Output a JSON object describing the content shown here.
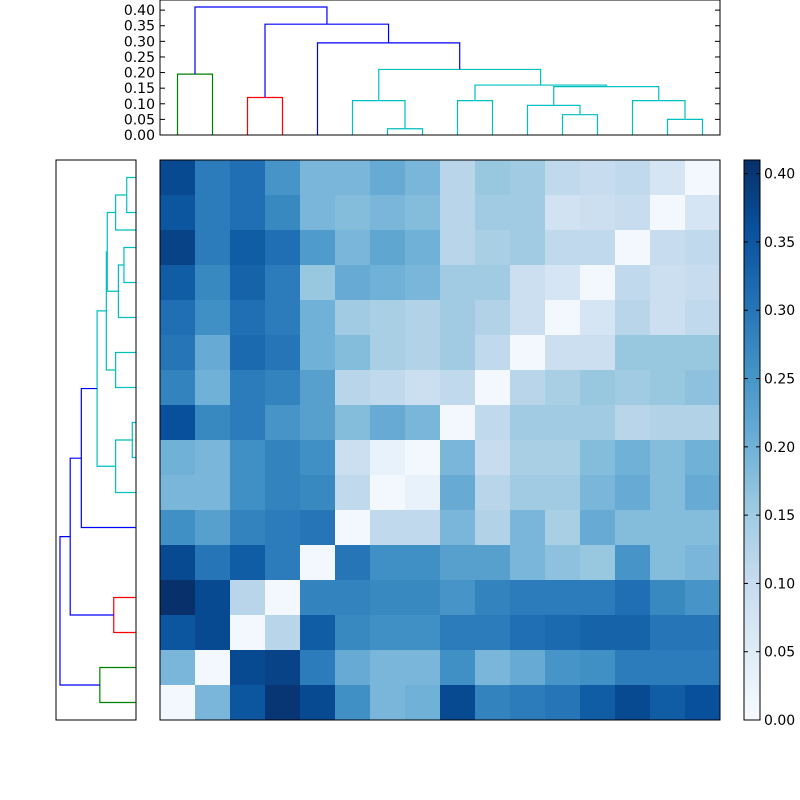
{
  "chart_data": [
    {
      "type": "dendrogram",
      "orientation": "top",
      "yticks": [
        "0.00",
        "0.05",
        "0.10",
        "0.15",
        "0.20",
        "0.25",
        "0.30",
        "0.35",
        "0.40"
      ],
      "ylim": [
        0,
        0.41
      ],
      "colors": {
        "green": "#008000",
        "red": "#ff0000",
        "blue": "#0000ff",
        "cyan": "#00bfbf"
      },
      "links": [
        {
          "x1": 0.5,
          "x2": 1.5,
          "y1a": 0.0,
          "y1b": 0.0,
          "h": 0.195,
          "color": "green"
        },
        {
          "x1": 2.5,
          "x2": 3.5,
          "y1a": 0.0,
          "y1b": 0.0,
          "h": 0.12,
          "color": "red"
        },
        {
          "x1": 6.5,
          "x2": 7.5,
          "y1a": 0.0,
          "y1b": 0.0,
          "h": 0.02,
          "color": "cyan"
        },
        {
          "x1": 5.5,
          "x2": 7.0,
          "y1a": 0.0,
          "y1b": 0.02,
          "h": 0.11,
          "color": "cyan"
        },
        {
          "x1": 8.5,
          "x2": 9.5,
          "y1a": 0.0,
          "y1b": 0.0,
          "h": 0.11,
          "color": "cyan"
        },
        {
          "x1": 11.5,
          "x2": 12.5,
          "y1a": 0.0,
          "y1b": 0.0,
          "h": 0.065,
          "color": "cyan"
        },
        {
          "x1": 10.5,
          "x2": 12.0,
          "y1a": 0.0,
          "y1b": 0.065,
          "h": 0.095,
          "color": "cyan"
        },
        {
          "x1": 14.5,
          "x2": 15.5,
          "y1a": 0.0,
          "y1b": 0.0,
          "h": 0.05,
          "color": "cyan"
        },
        {
          "x1": 13.5,
          "x2": 15.0,
          "y1a": 0.0,
          "y1b": 0.05,
          "h": 0.11,
          "color": "cyan"
        },
        {
          "x1": 11.25,
          "x2": 14.25,
          "y1a": 0.095,
          "y1b": 0.11,
          "h": 0.155,
          "color": "cyan"
        },
        {
          "x1": 9.0,
          "x2": 12.75,
          "y1a": 0.11,
          "y1b": 0.155,
          "h": 0.16,
          "color": "cyan"
        },
        {
          "x1": 6.25,
          "x2": 10.875,
          "y1a": 0.11,
          "y1b": 0.16,
          "h": 0.21,
          "color": "cyan"
        },
        {
          "x1": 4.5,
          "x2": 8.5625,
          "y1a": 0.0,
          "y1b": 0.21,
          "h": 0.295,
          "color": "blue"
        },
        {
          "x1": 3.0,
          "x2": 6.53,
          "y1a": 0.12,
          "y1b": 0.295,
          "h": 0.355,
          "color": "blue"
        },
        {
          "x1": 1.0,
          "x2": 4.77,
          "y1a": 0.195,
          "y1b": 0.355,
          "h": 0.41,
          "color": "blue"
        }
      ]
    },
    {
      "type": "dendrogram",
      "orientation": "left",
      "links_from_top": true,
      "note_ordering": "row order reversed relative to top dendrogram",
      "links": [
        {
          "y1": 14.5,
          "y2": 15.5,
          "h": 0.195,
          "color": "green"
        },
        {
          "y1": 12.5,
          "y2": 13.5,
          "h": 0.12,
          "color": "red"
        },
        {
          "y1": 8.5,
          "y2": 7.5,
          "h": 0.02,
          "color": "cyan"
        },
        {
          "y1": 9.5,
          "y2": 8.0,
          "h": 0.11,
          "color": "cyan"
        },
        {
          "y1": 6.5,
          "y2": 5.5,
          "h": 0.11,
          "color": "cyan"
        },
        {
          "y1": 3.5,
          "y2": 2.5,
          "h": 0.065,
          "color": "cyan"
        },
        {
          "y1": 4.5,
          "y2": 3.0,
          "h": 0.095,
          "color": "cyan"
        },
        {
          "y1": 0.5,
          "y2": 1.5,
          "h": 0.05,
          "color": "cyan"
        },
        {
          "y1": 2.0,
          "y2": 1.0,
          "h": 0.11,
          "color": "cyan"
        },
        {
          "y1": 3.75,
          "y2": 1.5,
          "h": 0.155,
          "color": "cyan"
        },
        {
          "y1": 6.0,
          "y2": 2.625,
          "h": 0.16,
          "color": "cyan"
        },
        {
          "y1": 8.75,
          "y2": 4.31,
          "h": 0.21,
          "color": "cyan"
        },
        {
          "y1": 10.5,
          "y2": 6.53,
          "h": 0.295,
          "color": "blue"
        },
        {
          "y1": 13.0,
          "y2": 8.52,
          "h": 0.355,
          "color": "blue"
        },
        {
          "y1": 15.0,
          "y2": 10.76,
          "h": 0.41,
          "color": "blue"
        }
      ]
    },
    {
      "type": "heatmap",
      "rows": 16,
      "cols": 16,
      "vmin": 0.0,
      "vmax": 0.41,
      "colormap": "Blues",
      "values": [
        [
          0.37,
          0.29,
          0.31,
          0.25,
          0.19,
          0.19,
          0.21,
          0.19,
          0.12,
          0.16,
          0.15,
          0.11,
          0.1,
          0.11,
          0.07,
          0.01
        ],
        [
          0.35,
          0.29,
          0.31,
          0.27,
          0.19,
          0.18,
          0.19,
          0.18,
          0.12,
          0.15,
          0.15,
          0.08,
          0.09,
          0.1,
          0.01,
          0.07
        ],
        [
          0.38,
          0.29,
          0.34,
          0.31,
          0.24,
          0.19,
          0.22,
          0.2,
          0.12,
          0.14,
          0.15,
          0.11,
          0.11,
          0.01,
          0.1,
          0.11
        ],
        [
          0.34,
          0.27,
          0.33,
          0.29,
          0.16,
          0.21,
          0.2,
          0.19,
          0.15,
          0.15,
          0.09,
          0.07,
          0.01,
          0.11,
          0.09,
          0.1
        ],
        [
          0.31,
          0.26,
          0.31,
          0.29,
          0.2,
          0.15,
          0.14,
          0.13,
          0.15,
          0.13,
          0.09,
          0.01,
          0.07,
          0.12,
          0.09,
          0.11
        ],
        [
          0.3,
          0.21,
          0.32,
          0.3,
          0.2,
          0.18,
          0.14,
          0.13,
          0.15,
          0.11,
          0.01,
          0.09,
          0.09,
          0.16,
          0.16,
          0.16
        ],
        [
          0.28,
          0.2,
          0.29,
          0.28,
          0.23,
          0.12,
          0.11,
          0.09,
          0.11,
          0.01,
          0.12,
          0.14,
          0.16,
          0.15,
          0.16,
          0.17
        ],
        [
          0.36,
          0.27,
          0.29,
          0.25,
          0.23,
          0.18,
          0.21,
          0.19,
          0.01,
          0.11,
          0.15,
          0.15,
          0.15,
          0.12,
          0.13,
          0.13
        ],
        [
          0.2,
          0.19,
          0.26,
          0.28,
          0.26,
          0.09,
          0.03,
          0.01,
          0.19,
          0.1,
          0.14,
          0.14,
          0.18,
          0.2,
          0.18,
          0.2
        ],
        [
          0.19,
          0.19,
          0.26,
          0.28,
          0.27,
          0.11,
          0.01,
          0.03,
          0.21,
          0.12,
          0.15,
          0.15,
          0.19,
          0.21,
          0.18,
          0.21
        ],
        [
          0.26,
          0.23,
          0.28,
          0.29,
          0.3,
          0.01,
          0.11,
          0.11,
          0.19,
          0.13,
          0.19,
          0.14,
          0.21,
          0.18,
          0.18,
          0.18
        ],
        [
          0.37,
          0.3,
          0.34,
          0.29,
          0.01,
          0.3,
          0.26,
          0.26,
          0.23,
          0.23,
          0.19,
          0.17,
          0.16,
          0.25,
          0.18,
          0.19
        ],
        [
          0.41,
          0.37,
          0.12,
          0.01,
          0.28,
          0.28,
          0.27,
          0.27,
          0.25,
          0.28,
          0.29,
          0.29,
          0.29,
          0.31,
          0.27,
          0.25
        ],
        [
          0.35,
          0.37,
          0.01,
          0.12,
          0.34,
          0.27,
          0.26,
          0.26,
          0.29,
          0.29,
          0.31,
          0.32,
          0.33,
          0.33,
          0.3,
          0.3
        ],
        [
          0.19,
          0.01,
          0.37,
          0.38,
          0.29,
          0.21,
          0.19,
          0.19,
          0.26,
          0.19,
          0.21,
          0.25,
          0.26,
          0.29,
          0.29,
          0.29
        ],
        [
          0.01,
          0.19,
          0.35,
          0.4,
          0.37,
          0.26,
          0.19,
          0.2,
          0.37,
          0.28,
          0.29,
          0.3,
          0.34,
          0.37,
          0.34,
          0.36
        ]
      ]
    },
    {
      "type": "colorbar",
      "colormap": "Blues",
      "vmin": 0.0,
      "vmax": 0.41,
      "ticks": [
        "0.00",
        "0.05",
        "0.10",
        "0.15",
        "0.20",
        "0.25",
        "0.30",
        "0.35",
        "0.40"
      ]
    }
  ]
}
